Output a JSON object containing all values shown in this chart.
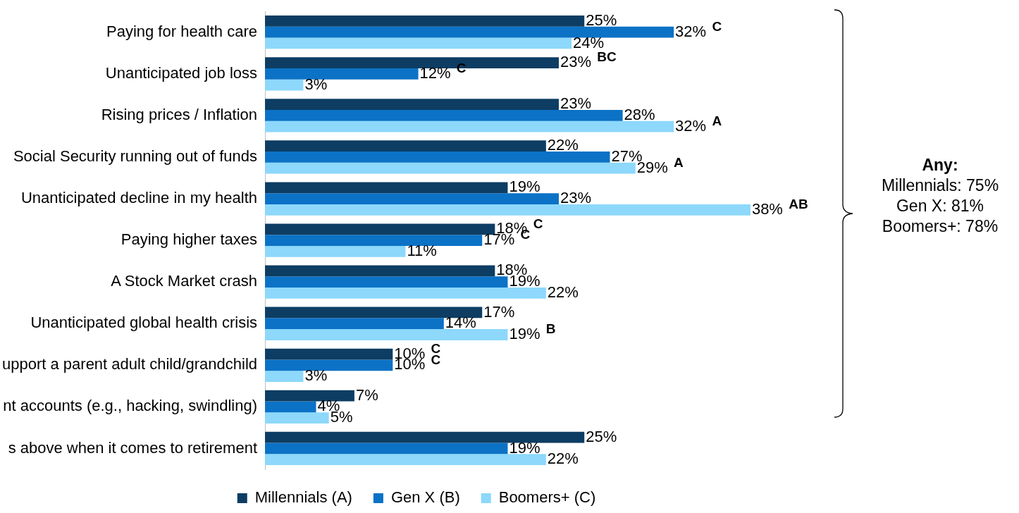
{
  "chart_data": {
    "type": "bar",
    "orientation": "horizontal",
    "categories": [
      "Paying for health care",
      "Unanticipated job loss",
      "Rising prices / Inflation",
      "Social Security running out of funds",
      "Unanticipated decline in my health",
      "Paying higher taxes",
      "A Stock Market crash",
      "Unanticipated global health crisis",
      "upport a parent adult child/grandchild",
      "nt accounts (e.g., hacking, swindling)",
      "s above when it comes to retirement"
    ],
    "series": [
      {
        "name": "Millennials (A)",
        "color": "#0d3d63",
        "values": [
          25,
          23,
          23,
          22,
          19,
          18,
          18,
          17,
          10,
          7,
          25
        ],
        "value_labels": [
          "25%",
          "23% BC",
          "23%",
          "22%",
          "19%",
          "18% C",
          "18%",
          "17%",
          "10% C",
          "7%",
          "25%"
        ]
      },
      {
        "name": "Gen X (B)",
        "color": "#0b72c6",
        "values": [
          32,
          12,
          28,
          27,
          23,
          17,
          19,
          14,
          10,
          4,
          19
        ],
        "value_labels": [
          "32% C",
          "12% C",
          "28%",
          "27%",
          "23%",
          "17% C",
          "19%",
          "14%",
          "10% C",
          "4%",
          "19%"
        ]
      },
      {
        "name": "Boomers+ (C)",
        "color": "#8dd8fb",
        "values": [
          24,
          3,
          32,
          29,
          38,
          11,
          22,
          19,
          3,
          5,
          22
        ],
        "value_labels": [
          "24%",
          "3%",
          "32% A",
          "29% A",
          "38% AB",
          "11%",
          "22%",
          "19% B",
          "3%",
          "5%",
          "22%"
        ]
      }
    ],
    "annotations": [
      "Any:\nMillennials: 75%\nGen X: 81%\nBoomers+: 78%"
    ],
    "legend": "bottom"
  }
}
